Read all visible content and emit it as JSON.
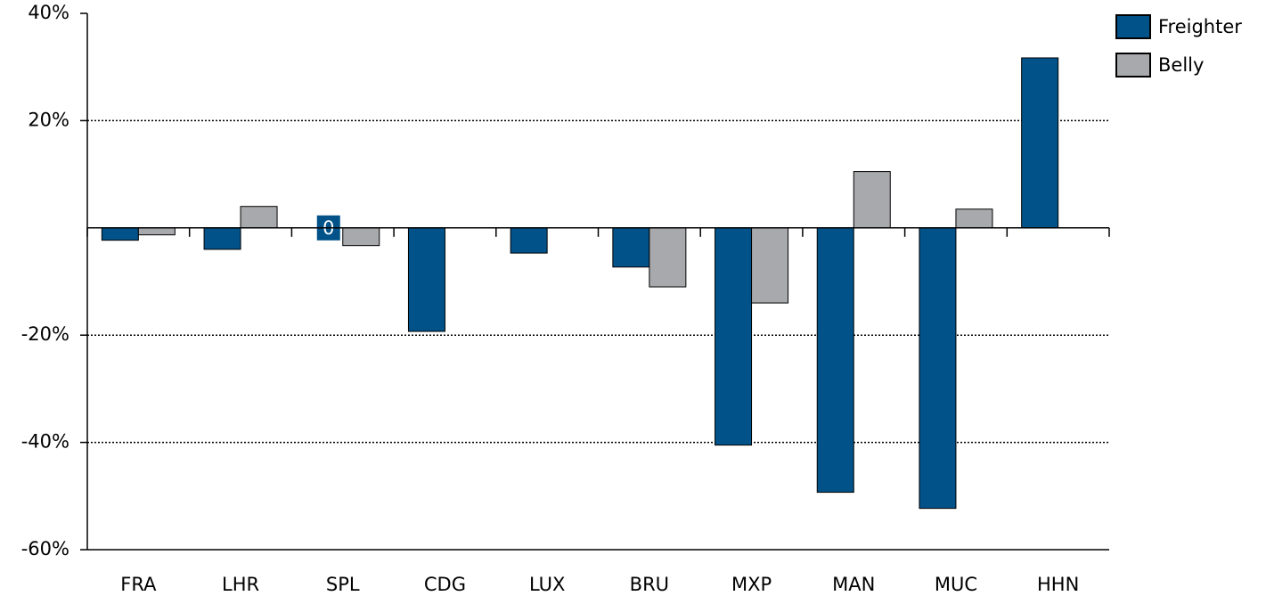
{
  "chart_data": {
    "type": "bar",
    "categories": [
      "FRA",
      "LHR",
      "SPL",
      "CDG",
      "LUX",
      "BRU",
      "MXP",
      "MAN",
      "MUC",
      "HHN"
    ],
    "series": [
      {
        "name": "Freighter",
        "color": "#005288",
        "values": [
          -2.3,
          -4,
          0,
          -19.3,
          -4.7,
          -7.3,
          -40.5,
          -49.3,
          -52.3,
          31.7
        ],
        "value_labels": [
          null,
          null,
          "0",
          null,
          null,
          null,
          null,
          null,
          null,
          null
        ]
      },
      {
        "name": "Belly",
        "color": "#a7a9ac",
        "values": [
          -1.3,
          4,
          -3.3,
          null,
          null,
          -11,
          -14,
          10.5,
          3.5,
          null
        ]
      }
    ],
    "ylim": [
      -60,
      40
    ],
    "yticks": [
      {
        "value": 40,
        "label": "40%"
      },
      {
        "value": 20,
        "label": "20%"
      },
      {
        "value": -20,
        "label": "-20%"
      },
      {
        "value": -40,
        "label": "-40%"
      },
      {
        "value": -60,
        "label": "-60%"
      }
    ],
    "grid": true,
    "legend": "top-right"
  }
}
